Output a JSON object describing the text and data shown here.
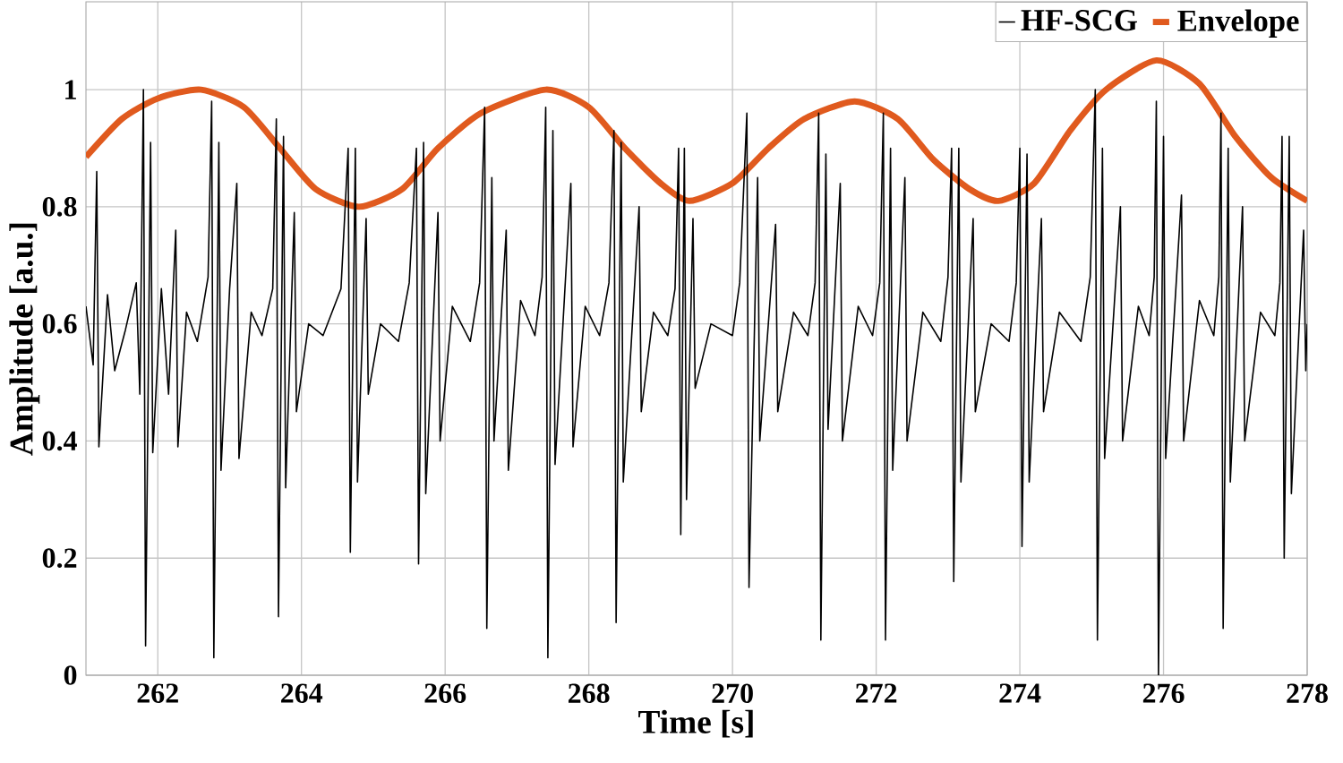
{
  "chart_data": {
    "type": "line",
    "xlabel": "Time [s]",
    "ylabel": "Amplitude [a.u.]",
    "xlim": [
      261,
      278
    ],
    "ylim": [
      0,
      1.15
    ],
    "xticks": [
      262,
      264,
      266,
      268,
      270,
      272,
      274,
      276,
      278
    ],
    "yticks": [
      0,
      0.2,
      0.4,
      0.6,
      0.8,
      1
    ],
    "grid": true,
    "legend": "top right",
    "marker": "none",
    "series": [
      {
        "name": "HF-SCG",
        "color": "#000000",
        "x": [
          261.0,
          261.1,
          261.15,
          261.18,
          261.3,
          261.4,
          261.55,
          261.7,
          261.75,
          261.8,
          261.83,
          261.9,
          261.93,
          262.05,
          262.15,
          262.25,
          262.28,
          262.4,
          262.55,
          262.7,
          262.75,
          262.78,
          262.85,
          262.88,
          263.0,
          263.1,
          263.13,
          263.3,
          263.45,
          263.6,
          263.65,
          263.68,
          263.75,
          263.78,
          263.9,
          263.93,
          264.1,
          264.3,
          264.55,
          264.65,
          264.68,
          264.75,
          264.78,
          264.9,
          264.93,
          265.1,
          265.35,
          265.5,
          265.6,
          265.63,
          265.7,
          265.73,
          265.9,
          265.93,
          266.1,
          266.35,
          266.48,
          266.55,
          266.58,
          266.65,
          266.68,
          266.85,
          266.88,
          267.05,
          267.25,
          267.35,
          267.4,
          267.43,
          267.5,
          267.53,
          267.75,
          267.78,
          267.95,
          268.15,
          268.28,
          268.35,
          268.38,
          268.45,
          268.48,
          268.7,
          268.73,
          268.9,
          269.1,
          269.2,
          269.25,
          269.28,
          269.33,
          269.36,
          269.45,
          269.48,
          269.7,
          270.0,
          270.1,
          270.2,
          270.23,
          270.35,
          270.38,
          270.6,
          270.63,
          270.85,
          271.05,
          271.15,
          271.2,
          271.23,
          271.3,
          271.33,
          271.5,
          271.53,
          271.75,
          271.95,
          272.05,
          272.1,
          272.13,
          272.2,
          272.23,
          272.4,
          272.43,
          272.65,
          272.9,
          273.0,
          273.05,
          273.08,
          273.15,
          273.18,
          273.35,
          273.38,
          273.6,
          273.85,
          273.95,
          274.0,
          274.03,
          274.1,
          274.13,
          274.3,
          274.33,
          274.55,
          274.85,
          274.98,
          275.05,
          275.08,
          275.15,
          275.18,
          275.4,
          275.43,
          275.65,
          275.8,
          275.87,
          275.9,
          275.93,
          276.0,
          276.03,
          276.25,
          276.28,
          276.5,
          276.7,
          276.77,
          276.8,
          276.83,
          276.9,
          276.93,
          277.1,
          277.13,
          277.35,
          277.55,
          277.62,
          277.65,
          277.68,
          277.75,
          277.78,
          277.95,
          277.98,
          278.0
        ],
        "values": [
          0.63,
          0.53,
          0.86,
          0.39,
          0.65,
          0.52,
          0.59,
          0.67,
          0.48,
          1.0,
          0.05,
          0.91,
          0.38,
          0.66,
          0.48,
          0.76,
          0.39,
          0.62,
          0.57,
          0.68,
          0.98,
          0.03,
          0.91,
          0.35,
          0.66,
          0.84,
          0.37,
          0.62,
          0.58,
          0.66,
          0.95,
          0.1,
          0.92,
          0.32,
          0.79,
          0.45,
          0.6,
          0.58,
          0.66,
          0.9,
          0.21,
          0.9,
          0.33,
          0.78,
          0.48,
          0.6,
          0.57,
          0.67,
          0.9,
          0.19,
          0.91,
          0.31,
          0.79,
          0.4,
          0.63,
          0.57,
          0.67,
          0.97,
          0.08,
          0.85,
          0.4,
          0.76,
          0.35,
          0.64,
          0.58,
          0.68,
          0.97,
          0.03,
          0.93,
          0.36,
          0.84,
          0.39,
          0.63,
          0.58,
          0.67,
          0.93,
          0.09,
          0.91,
          0.33,
          0.8,
          0.45,
          0.62,
          0.58,
          0.66,
          0.9,
          0.24,
          0.9,
          0.3,
          0.78,
          0.49,
          0.6,
          0.58,
          0.67,
          0.96,
          0.15,
          0.85,
          0.4,
          0.77,
          0.45,
          0.62,
          0.58,
          0.67,
          0.96,
          0.06,
          0.89,
          0.42,
          0.84,
          0.4,
          0.63,
          0.58,
          0.67,
          0.96,
          0.06,
          0.9,
          0.35,
          0.85,
          0.4,
          0.62,
          0.57,
          0.68,
          0.9,
          0.16,
          0.9,
          0.33,
          0.78,
          0.45,
          0.6,
          0.57,
          0.67,
          0.9,
          0.22,
          0.89,
          0.33,
          0.78,
          0.45,
          0.62,
          0.57,
          0.68,
          1.0,
          0.06,
          0.9,
          0.37,
          0.8,
          0.4,
          0.63,
          0.58,
          0.68,
          0.98,
          0.0,
          0.92,
          0.37,
          0.82,
          0.4,
          0.64,
          0.58,
          0.68,
          0.96,
          0.08,
          0.9,
          0.33,
          0.8,
          0.4,
          0.62,
          0.58,
          0.67,
          0.92,
          0.2,
          0.92,
          0.31,
          0.76,
          0.52,
          0.6
        ]
      },
      {
        "name": "Envelope",
        "color": "#e05a1e",
        "x": [
          261,
          261.5,
          262,
          262.6,
          263.2,
          263.7,
          264.2,
          264.8,
          265.4,
          265.9,
          266.5,
          267.4,
          268.0,
          268.5,
          269.0,
          269.4,
          270.0,
          270.5,
          271.0,
          271.7,
          272.3,
          272.8,
          273.3,
          273.7,
          274.2,
          274.7,
          275.2,
          275.9,
          276.5,
          277.0,
          277.5,
          278.0
        ],
        "values": [
          0.885,
          0.95,
          0.985,
          1.0,
          0.97,
          0.9,
          0.83,
          0.8,
          0.83,
          0.9,
          0.96,
          1.0,
          0.97,
          0.9,
          0.84,
          0.81,
          0.84,
          0.9,
          0.95,
          0.98,
          0.95,
          0.88,
          0.83,
          0.81,
          0.84,
          0.93,
          1.0,
          1.05,
          1.01,
          0.92,
          0.85,
          0.81
        ]
      }
    ]
  }
}
